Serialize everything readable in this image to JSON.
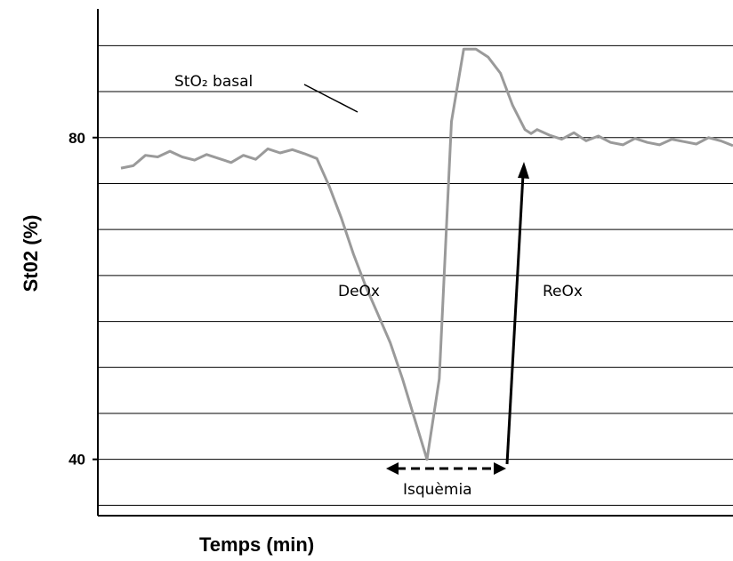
{
  "chart_data": {
    "type": "line",
    "title": "",
    "xlabel": "Temps (min)",
    "ylabel": "St02 (%)",
    "ylim": [
      33,
      96
    ],
    "xlim": [
      0,
      100
    ],
    "yticks": [
      40,
      80
    ],
    "grid": true,
    "series_color": "#9a9a9a",
    "series": [
      {
        "x": [
          0,
          2,
          4,
          6,
          8,
          10,
          12,
          14,
          16,
          18,
          20,
          22,
          24,
          26,
          28,
          30,
          32,
          34,
          36,
          38,
          40,
          42,
          44,
          46,
          48,
          50,
          52,
          54,
          56,
          58,
          60,
          62,
          64,
          66,
          67,
          68,
          70,
          72,
          74,
          76,
          78,
          80,
          82,
          84,
          86,
          88,
          90,
          92,
          94,
          96,
          98,
          100
        ],
        "y": [
          76.2,
          76.5,
          77.8,
          77.6,
          78.3,
          77.6,
          77.2,
          77.9,
          77.4,
          76.9,
          77.8,
          77.3,
          78.6,
          78.1,
          78.5,
          78,
          77.4,
          74,
          70,
          65.5,
          61.5,
          58,
          54.5,
          50,
          45,
          40,
          50,
          82,
          91,
          91,
          90,
          88,
          84,
          81,
          80.5,
          81,
          80.3,
          79.8,
          80.6,
          79.6,
          80.2,
          79.4,
          79.1,
          79.9,
          79.4,
          79.1,
          79.8,
          79.5,
          79.2,
          80,
          79.6,
          79
        ]
      }
    ],
    "annotations": {
      "stO2_basal": "StO₂ basal",
      "deox": "DeOx",
      "reox": "ReOx",
      "isquemia": "Isquèmia"
    }
  }
}
